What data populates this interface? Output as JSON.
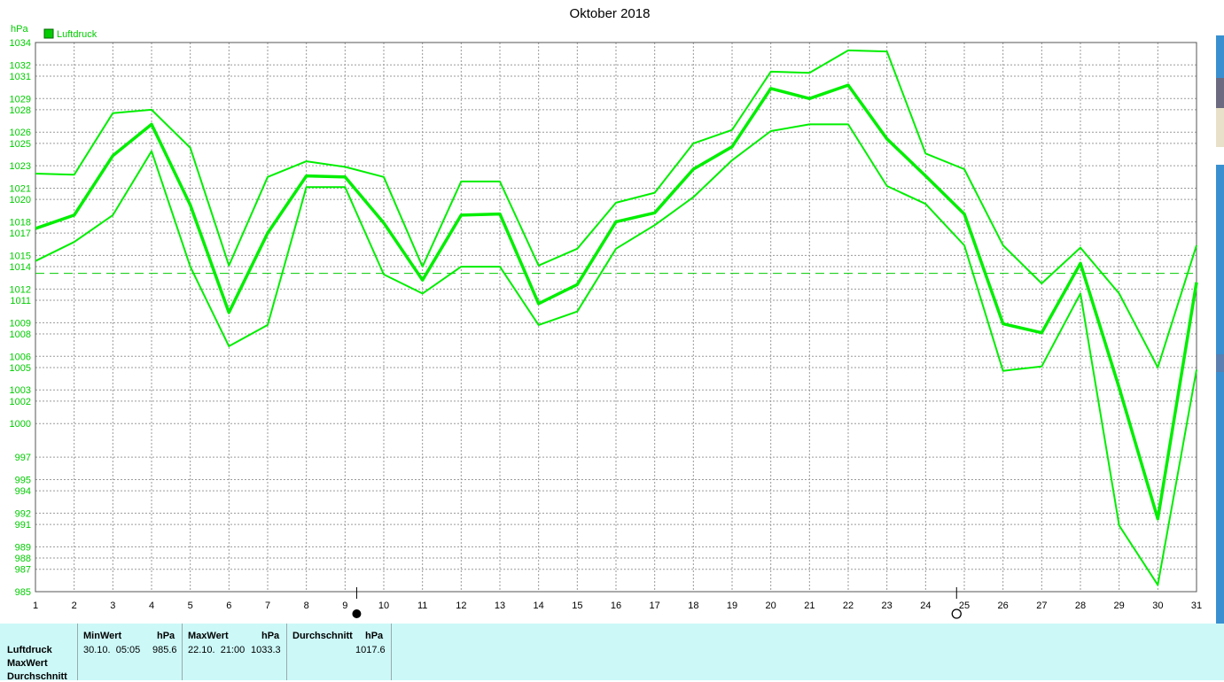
{
  "chart_data": {
    "type": "line",
    "title": "Oktober 2018",
    "unit": "hPa",
    "legend": {
      "label": "Luftdruck",
      "color": "#00cc00",
      "placement": "top-left"
    },
    "ylim": [
      985,
      1034
    ],
    "yticks": [
      985,
      987,
      988,
      989,
      991,
      992,
      994,
      995,
      997,
      1000,
      1002,
      1003,
      1005,
      1006,
      1008,
      1009,
      1011,
      1012,
      1014,
      1015,
      1017,
      1018,
      1020,
      1021,
      1023,
      1025,
      1026,
      1028,
      1029,
      1031,
      1032,
      1034
    ],
    "x": [
      1,
      2,
      3,
      4,
      5,
      6,
      7,
      8,
      9,
      10,
      11,
      12,
      13,
      14,
      15,
      16,
      17,
      18,
      19,
      20,
      21,
      22,
      23,
      24,
      25,
      26,
      27,
      28,
      29,
      30,
      31
    ],
    "xlim": [
      1,
      31
    ],
    "grid": true,
    "reference_line": 1013.4,
    "moon_phases": [
      {
        "x": 9.3,
        "type": "new-moon"
      },
      {
        "x": 24.8,
        "type": "full-moon"
      }
    ],
    "series": [
      {
        "role": "max",
        "values": [
          1022.3,
          1022.2,
          1027.7,
          1028.0,
          1024.6,
          1014.1,
          1022.0,
          1023.4,
          1022.9,
          1022.0,
          1014.0,
          1021.6,
          1021.6,
          1014.1,
          1015.6,
          1019.7,
          1020.6,
          1025.0,
          1026.2,
          1031.4,
          1031.3,
          1033.3,
          1033.2,
          1024.1,
          1022.7,
          1015.9,
          1012.5,
          1015.7,
          1011.6,
          1005.0,
          1015.9
        ]
      },
      {
        "role": "mean",
        "values": [
          1017.4,
          1018.6,
          1023.9,
          1026.7,
          1019.5,
          1009.9,
          1017.0,
          1022.1,
          1022.0,
          1017.9,
          1012.8,
          1018.6,
          1018.7,
          1010.7,
          1012.4,
          1018.0,
          1018.8,
          1022.7,
          1024.7,
          1029.9,
          1029.0,
          1030.2,
          1025.4,
          1022.1,
          1018.7,
          1008.9,
          1008.1,
          1014.3,
          1003.2,
          991.5,
          1012.6
        ]
      },
      {
        "role": "min",
        "values": [
          1014.5,
          1016.2,
          1018.6,
          1024.3,
          1014.0,
          1006.9,
          1008.8,
          1021.1,
          1021.1,
          1013.3,
          1011.6,
          1014.0,
          1014.0,
          1008.8,
          1010.0,
          1015.6,
          1017.7,
          1020.2,
          1023.5,
          1026.1,
          1026.7,
          1026.7,
          1021.2,
          1019.6,
          1015.9,
          1004.7,
          1005.1,
          1011.6,
          990.9,
          985.6,
          1004.8
        ]
      }
    ]
  },
  "stats": {
    "row_labels": [
      "Luftdruck",
      "MaxWert",
      "Durchschnitt"
    ],
    "min": {
      "header": "MinWert",
      "unit": "hPa",
      "datetime": "30.10.  05:05",
      "value": "985.6"
    },
    "max": {
      "header": "MaxWert",
      "unit": "hPa",
      "datetime": "22.10.  21:00",
      "value": "1033.3"
    },
    "avg": {
      "header": "Durchschnitt",
      "unit": "hPa",
      "value": "1017.6"
    }
  }
}
